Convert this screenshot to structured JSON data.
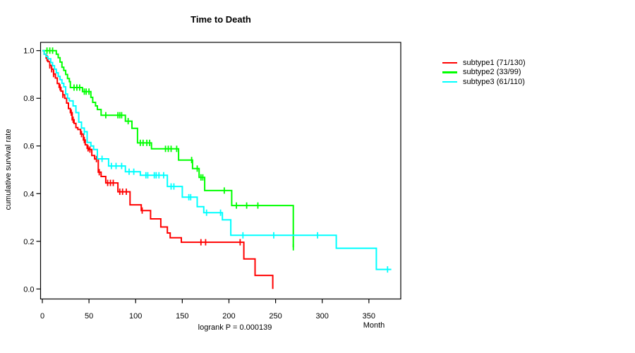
{
  "chart_data": {
    "type": "line",
    "chart_kind": "kaplan_meier_step",
    "title": "Time to Death",
    "ylabel": "cumulative survival rate",
    "xlabel": "Month",
    "footer": "logrank P = 0.000139",
    "xticks": [
      0,
      50,
      100,
      150,
      200,
      250,
      300,
      350
    ],
    "yticks": [
      "0.0",
      "0.2",
      "0.4",
      "0.6",
      "0.8",
      "1.0"
    ],
    "xlim": [
      0,
      384
    ],
    "ylim": [
      0,
      1.04
    ],
    "grid": false,
    "legend_position": "right",
    "series": [
      {
        "name": "subtype1",
        "label": "subtype1 (71/130)",
        "color": "#ff0000",
        "end_month": 247,
        "steps": [
          [
            0,
            1.0
          ],
          [
            2,
            0.985
          ],
          [
            4,
            0.969
          ],
          [
            6,
            0.954
          ],
          [
            8,
            0.938
          ],
          [
            10,
            0.922
          ],
          [
            12,
            0.902
          ],
          [
            14,
            0.885
          ],
          [
            16,
            0.862
          ],
          [
            18,
            0.846
          ],
          [
            20,
            0.83
          ],
          [
            22,
            0.815
          ],
          [
            24,
            0.8
          ],
          [
            26,
            0.78
          ],
          [
            28,
            0.757
          ],
          [
            30,
            0.74
          ],
          [
            32,
            0.71
          ],
          [
            34,
            0.695
          ],
          [
            36,
            0.677
          ],
          [
            38,
            0.669
          ],
          [
            41,
            0.65
          ],
          [
            44,
            0.625
          ],
          [
            46,
            0.605
          ],
          [
            48,
            0.59
          ],
          [
            50,
            0.585
          ],
          [
            53,
            0.56
          ],
          [
            56,
            0.545
          ],
          [
            60,
            0.49
          ],
          [
            63,
            0.472
          ],
          [
            68,
            0.445
          ],
          [
            81,
            0.408
          ],
          [
            94,
            0.353
          ],
          [
            106,
            0.329
          ],
          [
            116,
            0.294
          ],
          [
            127,
            0.26
          ],
          [
            134,
            0.235
          ],
          [
            137,
            0.215
          ],
          [
            149,
            0.196
          ],
          [
            216,
            0.126
          ],
          [
            228,
            0.057
          ],
          [
            247,
            0
          ]
        ],
        "censors": [
          5,
          8,
          10,
          12,
          19,
          22,
          31,
          33,
          42,
          45,
          49,
          51,
          58,
          61,
          70,
          73,
          76,
          83,
          86,
          90,
          107,
          170,
          175,
          212
        ]
      },
      {
        "name": "subtype2",
        "label": "subtype2 (33/99)",
        "color": "#00ff00",
        "end_month": 269,
        "steps": [
          [
            0,
            1.0
          ],
          [
            15,
            0.985
          ],
          [
            17,
            0.97
          ],
          [
            19,
            0.952
          ],
          [
            21,
            0.93
          ],
          [
            23,
            0.917
          ],
          [
            25,
            0.9
          ],
          [
            27,
            0.883
          ],
          [
            29,
            0.87
          ],
          [
            30,
            0.845
          ],
          [
            43,
            0.828
          ],
          [
            52,
            0.804
          ],
          [
            54,
            0.783
          ],
          [
            57,
            0.768
          ],
          [
            59,
            0.753
          ],
          [
            63,
            0.729
          ],
          [
            89,
            0.704
          ],
          [
            96,
            0.674
          ],
          [
            102,
            0.613
          ],
          [
            117,
            0.588
          ],
          [
            146,
            0.541
          ],
          [
            161,
            0.505
          ],
          [
            168,
            0.468
          ],
          [
            174,
            0.413
          ],
          [
            203,
            0.35
          ],
          [
            269,
            0.175
          ]
        ],
        "censors": [
          5,
          8,
          11,
          34,
          37,
          40,
          45,
          47,
          50,
          68,
          81,
          83,
          85,
          92,
          105,
          108,
          112,
          115,
          132,
          135,
          138,
          144,
          160,
          166,
          170,
          172,
          195,
          208,
          219,
          231,
          269
        ]
      },
      {
        "name": "subtype3",
        "label": "subtype3 (61/110)",
        "color": "#00ffff",
        "end_month": 374,
        "steps": [
          [
            0,
            1.0
          ],
          [
            2,
            0.985
          ],
          [
            4,
            0.975
          ],
          [
            6,
            0.966
          ],
          [
            9,
            0.95
          ],
          [
            11,
            0.937
          ],
          [
            13,
            0.922
          ],
          [
            15,
            0.907
          ],
          [
            17,
            0.892
          ],
          [
            19,
            0.878
          ],
          [
            21,
            0.863
          ],
          [
            23,
            0.848
          ],
          [
            25,
            0.818
          ],
          [
            27,
            0.8
          ],
          [
            29,
            0.789
          ],
          [
            33,
            0.768
          ],
          [
            36,
            0.74
          ],
          [
            39,
            0.7
          ],
          [
            42,
            0.675
          ],
          [
            45,
            0.66
          ],
          [
            48,
            0.615
          ],
          [
            52,
            0.6
          ],
          [
            55,
            0.585
          ],
          [
            59,
            0.546
          ],
          [
            71,
            0.516
          ],
          [
            89,
            0.492
          ],
          [
            105,
            0.477
          ],
          [
            134,
            0.43
          ],
          [
            150,
            0.385
          ],
          [
            166,
            0.345
          ],
          [
            173,
            0.32
          ],
          [
            193,
            0.29
          ],
          [
            202,
            0.225
          ],
          [
            315,
            0.171
          ],
          [
            358,
            0.082
          ]
        ],
        "censors": [
          45,
          64,
          74,
          79,
          85,
          93,
          98,
          111,
          113,
          120,
          122,
          125,
          130,
          138,
          141,
          157,
          159,
          176,
          191,
          215,
          248,
          295,
          370
        ]
      }
    ]
  }
}
